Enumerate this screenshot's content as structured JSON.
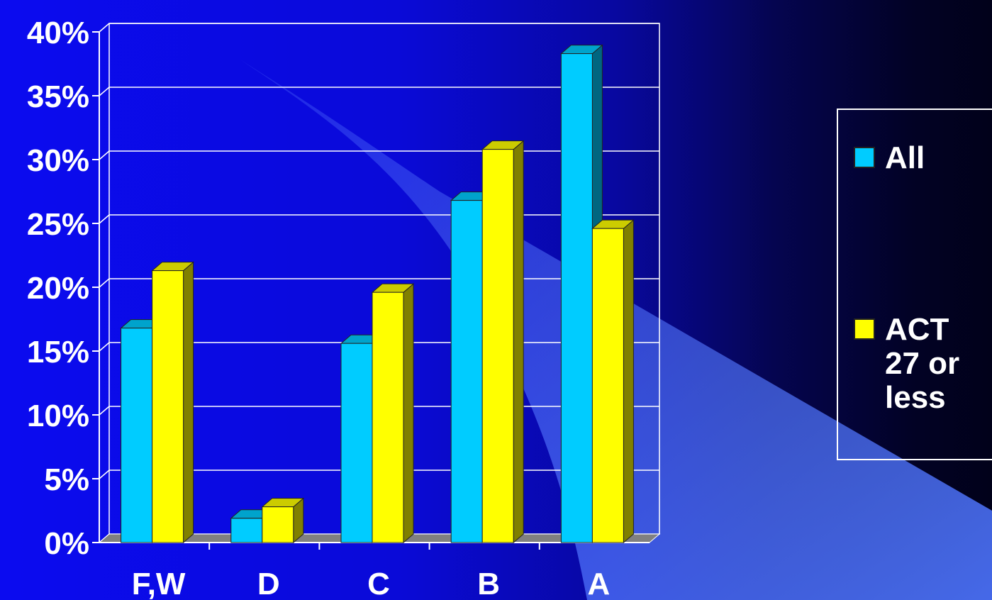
{
  "chart_data": {
    "type": "bar",
    "categories": [
      "F,W",
      "D",
      "C",
      "B",
      "A"
    ],
    "series": [
      {
        "name": "All",
        "values": [
          16.8,
          1.9,
          15.6,
          26.8,
          38.3
        ],
        "color": "#00ccff"
      },
      {
        "name": "ACT 27 or less",
        "values": [
          21.3,
          2.8,
          19.6,
          30.8,
          24.6
        ],
        "color": "#ffff00"
      }
    ],
    "ylim": [
      0,
      40
    ],
    "yticks": [
      "0%",
      "5%",
      "10%",
      "15%",
      "20%",
      "25%",
      "30%",
      "35%",
      "40%"
    ],
    "grid": true,
    "legend_position": "right",
    "style": "3d-clustered"
  },
  "legend": {
    "items": [
      {
        "label": "All",
        "color": "#00ccff"
      },
      {
        "label": "ACT 27 or less",
        "color": "#ffff00"
      }
    ]
  }
}
